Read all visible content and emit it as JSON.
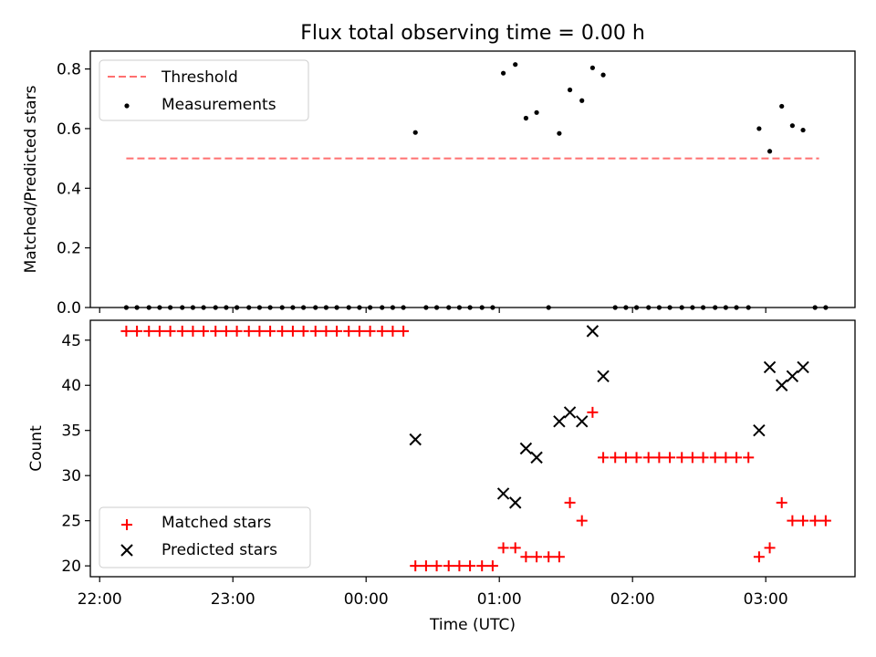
{
  "chart_data": [
    {
      "type": "scatter",
      "title": "Flux total observing time = 0.00 h",
      "ylabel": "Matched/Predicted stars",
      "xlabel": "",
      "ylim": [
        0,
        0.86
      ],
      "yticks": [
        0.0,
        0.2,
        0.4,
        0.6,
        0.8
      ],
      "ytick_labels": [
        "0.0",
        "0.2",
        "0.4",
        "0.6",
        "0.8"
      ],
      "xlim_hours": [
        21.93,
        27.67
      ],
      "xticks_hours": [
        22,
        23,
        24,
        25,
        26,
        27
      ],
      "legend_position": "upper-left",
      "colors": {
        "threshold": "#ff7070",
        "measurements": "#000000"
      },
      "series": [
        {
          "name": "Threshold",
          "style": "dashed-line",
          "x": [
            22.2,
            27.4
          ],
          "y": [
            0.5,
            0.5
          ]
        },
        {
          "name": "Measurements",
          "style": "dot",
          "x": [
            22.2,
            22.28,
            22.37,
            22.45,
            22.53,
            22.62,
            22.7,
            22.78,
            22.87,
            22.95,
            23.03,
            23.12,
            23.2,
            23.28,
            23.37,
            23.45,
            23.53,
            23.62,
            23.7,
            23.78,
            23.87,
            23.95,
            24.03,
            24.12,
            24.2,
            24.28,
            24.37,
            24.45,
            24.53,
            24.62,
            24.7,
            24.78,
            24.87,
            24.95,
            25.03,
            25.12,
            25.2,
            25.28,
            25.37,
            25.45,
            25.53,
            25.62,
            25.7,
            25.78,
            25.87,
            25.95,
            26.03,
            26.12,
            26.2,
            26.28,
            26.37,
            26.45,
            26.53,
            26.62,
            26.7,
            26.78,
            26.87,
            26.95,
            27.03,
            27.12,
            27.2,
            27.28,
            27.37,
            27.45
          ],
          "y": [
            0,
            0,
            0,
            0,
            0,
            0,
            0,
            0,
            0,
            0,
            0,
            0,
            0,
            0,
            0,
            0,
            0,
            0,
            0,
            0,
            0,
            0,
            0,
            0,
            0,
            0,
            0.587,
            0,
            0,
            0,
            0,
            0,
            0,
            0,
            0.786,
            0.815,
            0.635,
            0.654,
            0,
            0.584,
            0.73,
            0.694,
            0.804,
            0.78,
            0,
            0,
            0,
            0,
            0,
            0,
            0,
            0,
            0,
            0,
            0,
            0,
            0,
            0.6,
            0.524,
            0.675,
            0.61,
            0.595,
            0,
            0
          ]
        }
      ]
    },
    {
      "type": "scatter",
      "title": "",
      "ylabel": "Count",
      "xlabel": "Time (UTC)",
      "ylim": [
        18.8,
        47.2
      ],
      "yticks": [
        20,
        25,
        30,
        35,
        40,
        45
      ],
      "ytick_labels": [
        "20",
        "25",
        "30",
        "35",
        "40",
        "45"
      ],
      "xlim_hours": [
        21.93,
        27.67
      ],
      "xticks_hours": [
        22,
        23,
        24,
        25,
        26,
        27
      ],
      "xtick_labels": [
        "22:00",
        "23:00",
        "00:00",
        "01:00",
        "02:00",
        "03:00"
      ],
      "legend_position": "lower-left",
      "colors": {
        "matched": "#ff0000",
        "predicted": "#000000"
      },
      "series": [
        {
          "name": "Matched stars",
          "style": "plus",
          "x": [
            22.2,
            22.28,
            22.37,
            22.45,
            22.53,
            22.62,
            22.7,
            22.78,
            22.87,
            22.95,
            23.03,
            23.12,
            23.2,
            23.28,
            23.37,
            23.45,
            23.53,
            23.62,
            23.7,
            23.78,
            23.87,
            23.95,
            24.03,
            24.12,
            24.2,
            24.28,
            24.37,
            24.45,
            24.53,
            24.62,
            24.7,
            24.78,
            24.87,
            24.95,
            25.03,
            25.12,
            25.2,
            25.28,
            25.37,
            25.45,
            25.53,
            25.62,
            25.7,
            25.78,
            25.87,
            25.95,
            26.03,
            26.12,
            26.2,
            26.28,
            26.37,
            26.45,
            26.53,
            26.62,
            26.7,
            26.78,
            26.87,
            26.95,
            27.03,
            27.12,
            27.2,
            27.28,
            27.37,
            27.45
          ],
          "y": [
            46,
            46,
            46,
            46,
            46,
            46,
            46,
            46,
            46,
            46,
            46,
            46,
            46,
            46,
            46,
            46,
            46,
            46,
            46,
            46,
            46,
            46,
            46,
            46,
            46,
            46,
            20,
            20,
            20,
            20,
            20,
            20,
            20,
            20,
            22,
            22,
            21,
            21,
            21,
            21,
            27,
            25,
            37,
            32,
            32,
            32,
            32,
            32,
            32,
            32,
            32,
            32,
            32,
            32,
            32,
            32,
            32,
            21,
            22,
            27,
            25,
            25,
            25,
            25
          ]
        },
        {
          "name": "Predicted stars",
          "style": "x",
          "x": [
            24.37,
            25.03,
            25.12,
            25.2,
            25.28,
            25.45,
            25.53,
            25.62,
            25.7,
            25.78,
            26.95,
            27.03,
            27.12,
            27.2,
            27.28
          ],
          "y": [
            34,
            28,
            27,
            33,
            32,
            36,
            37,
            36,
            46,
            41,
            35,
            42,
            40,
            41,
            42
          ]
        }
      ]
    }
  ]
}
